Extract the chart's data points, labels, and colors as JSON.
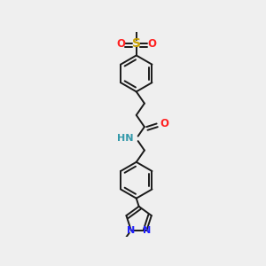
{
  "bg_color": "#efefef",
  "bond_color": "#1a1a1a",
  "bond_width": 1.4,
  "N_color": "#2020ff",
  "O_color": "#ff2020",
  "S_color": "#c8a000",
  "NH_color": "#3399aa",
  "fs": 7.5,
  "xlim": [
    0.15,
    0.85
  ],
  "ylim": [
    0.02,
    0.98
  ]
}
